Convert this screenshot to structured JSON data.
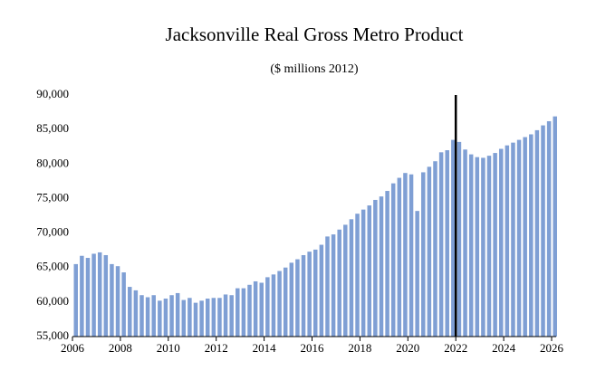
{
  "chart_data": {
    "type": "bar",
    "title": "Jacksonville Real Gross Metro Product",
    "subtitle": "($ millions 2012)",
    "color": "#7f9fd4",
    "x": [
      2006,
      2006.25,
      2006.5,
      2006.75,
      2007,
      2007.25,
      2007.5,
      2007.75,
      2008,
      2008.25,
      2008.5,
      2008.75,
      2009,
      2009.25,
      2009.5,
      2009.75,
      2010,
      2010.25,
      2010.5,
      2010.75,
      2011,
      2011.25,
      2011.5,
      2011.75,
      2012,
      2012.25,
      2012.5,
      2012.75,
      2013,
      2013.25,
      2013.5,
      2013.75,
      2014,
      2014.25,
      2014.5,
      2014.75,
      2015,
      2015.25,
      2015.5,
      2015.75,
      2016,
      2016.25,
      2016.5,
      2016.75,
      2017,
      2017.25,
      2017.5,
      2017.75,
      2018,
      2018.25,
      2018.5,
      2018.75,
      2019,
      2019.25,
      2019.5,
      2019.75,
      2020,
      2020.25,
      2020.5,
      2020.75,
      2021,
      2021.25,
      2021.5,
      2021.75,
      2022,
      2022.25,
      2022.5,
      2022.75,
      2023,
      2023.25,
      2023.5,
      2023.75,
      2024,
      2024.25,
      2024.5,
      2024.75,
      2025,
      2025.25,
      2025.5,
      2025.75,
      2026
    ],
    "values": [
      65500,
      66700,
      66400,
      67000,
      67200,
      66800,
      65500,
      65200,
      64300,
      62200,
      61700,
      61000,
      60700,
      61000,
      60200,
      60500,
      61000,
      61300,
      60300,
      60600,
      59900,
      60200,
      60500,
      60600,
      60600,
      61100,
      61000,
      62000,
      62000,
      62500,
      63000,
      62800,
      63600,
      64000,
      64500,
      65000,
      65700,
      66200,
      66800,
      67300,
      67600,
      68300,
      69500,
      69800,
      70500,
      71200,
      72000,
      72800,
      73400,
      74000,
      74800,
      75300,
      76100,
      77200,
      78000,
      78700,
      78500,
      73200,
      78800,
      79600,
      80400,
      81700,
      82000,
      83500,
      83200,
      82100,
      81400,
      81000,
      80900,
      81200,
      81600,
      82200,
      82700,
      83100,
      83500,
      83900,
      84300,
      84900,
      85600,
      86200,
      86900
    ],
    "xlim": [
      2006,
      2026
    ],
    "xticks": [
      2006,
      2008,
      2010,
      2012,
      2014,
      2016,
      2018,
      2020,
      2022,
      2024,
      2026
    ],
    "ylim": [
      55000,
      90000
    ],
    "yticks": [
      {
        "value": 55000,
        "label": "55,000"
      },
      {
        "value": 60000,
        "label": "60,000"
      },
      {
        "value": 65000,
        "label": "65,000"
      },
      {
        "value": 70000,
        "label": "70,000"
      },
      {
        "value": 75000,
        "label": "75,000"
      },
      {
        "value": 80000,
        "label": "80,000"
      },
      {
        "value": 85000,
        "label": "85,000"
      },
      {
        "value": 90000,
        "label": "90,000"
      }
    ],
    "vline": 2022,
    "vline_color": "#000000"
  }
}
